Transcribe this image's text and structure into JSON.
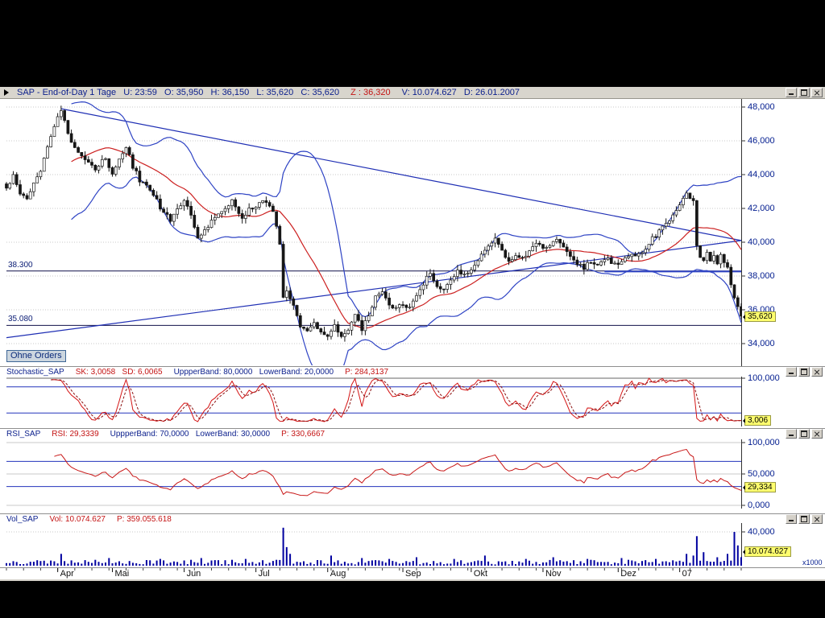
{
  "window": {
    "title_part1": "SAP - End-of-Day 1 Tage   U: 23:59   O: 35,950   H: 36,150   L: 35,620   C: 35,620",
    "title_part2": "Z : 36,320",
    "title_part3": "V: 10.074.627   D: 26.01.2007"
  },
  "main_chart": {
    "orders_label": "Ohne Orders",
    "support_upper_label": "38.300",
    "support_lower_label": "35.080",
    "last_price_label": "35,620"
  },
  "stochastic": {
    "name": "Stochastic_SAP",
    "params_red1": "SK: 3,0058   SD: 6,0065",
    "params_blue": "UppperBand: 80,0000   LowerBand: 20,0000",
    "params_red2": "P: 284,3137",
    "top_label": "100,000",
    "value_label": "3,006"
  },
  "rsi": {
    "name": "RSI_SAP",
    "params_red1": "RSI: 29,3339",
    "params_blue": "UppperBand: 70,0000   LowerBand: 30,0000",
    "params_red2": "P: 330,6667",
    "labels": {
      "top": "100,000",
      "mid": "50,000",
      "bottom": "0,000"
    },
    "value_label": "29,334"
  },
  "volume": {
    "name": "Vol_SAP",
    "params_red1": "Vol: 10.074.627",
    "params_red2": "P: 359.055.618",
    "top_label": "40,000",
    "value_label": "10.074.627",
    "multiplier_label": "x1000"
  },
  "chart_data": {
    "type": "candlestick",
    "title": "SAP End-of-Day 1 Tage",
    "days": 216,
    "y_ticks": [
      {
        "label": "48,000",
        "value": 48
      },
      {
        "label": "46,000",
        "value": 46
      },
      {
        "label": "44,000",
        "value": 44
      },
      {
        "label": "42,000",
        "value": 42
      },
      {
        "label": "40,000",
        "value": 40
      },
      {
        "label": "38,000",
        "value": 38
      },
      {
        "label": "36,000",
        "value": 36
      },
      {
        "label": "34,000",
        "value": 34
      }
    ],
    "y_range": [
      33.6,
      48.45
    ],
    "x_months": [
      {
        "label": "Apr",
        "day": 15
      },
      {
        "label": "Mai",
        "day": 31
      },
      {
        "label": "Jun",
        "day": 52
      },
      {
        "label": "Jul",
        "day": 73
      },
      {
        "label": "Aug",
        "day": 94
      },
      {
        "label": "Sep",
        "day": 116
      },
      {
        "label": "Okt",
        "day": 136
      },
      {
        "label": "Nov",
        "day": 157
      },
      {
        "label": "Dez",
        "day": 179
      },
      {
        "label": "07",
        "day": 197
      }
    ],
    "close_anchors": [
      [
        0,
        43.2
      ],
      [
        2,
        43.9
      ],
      [
        4,
        42.9
      ],
      [
        6,
        42.6
      ],
      [
        8,
        43.5
      ],
      [
        10,
        44.3
      ],
      [
        12,
        45.7
      ],
      [
        14,
        46.9
      ],
      [
        16,
        47.85
      ],
      [
        18,
        46.3
      ],
      [
        20,
        45.5
      ],
      [
        23,
        44.9
      ],
      [
        26,
        44.3
      ],
      [
        29,
        45.0
      ],
      [
        31,
        44.1
      ],
      [
        33,
        44.9
      ],
      [
        35,
        45.6
      ],
      [
        37,
        44.5
      ],
      [
        39,
        43.7
      ],
      [
        42,
        43.1
      ],
      [
        45,
        42.1
      ],
      [
        48,
        41.3
      ],
      [
        50,
        41.9
      ],
      [
        52,
        42.5
      ],
      [
        54,
        41.7
      ],
      [
        56,
        40.1
      ],
      [
        58,
        40.7
      ],
      [
        60,
        41.3
      ],
      [
        63,
        41.9
      ],
      [
        66,
        42.4
      ],
      [
        69,
        41.5
      ],
      [
        72,
        42.1
      ],
      [
        75,
        42.4
      ],
      [
        78,
        41.9
      ],
      [
        80,
        40.0
      ],
      [
        81,
        36.7
      ],
      [
        82,
        37.1
      ],
      [
        84,
        36.2
      ],
      [
        86,
        35.1
      ],
      [
        88,
        34.8
      ],
      [
        90,
        35.3
      ],
      [
        92,
        34.6
      ],
      [
        94,
        34.4
      ],
      [
        96,
        35.0
      ],
      [
        98,
        34.5
      ],
      [
        100,
        34.9
      ],
      [
        102,
        35.7
      ],
      [
        104,
        34.9
      ],
      [
        106,
        35.6
      ],
      [
        108,
        36.7
      ],
      [
        110,
        37.2
      ],
      [
        112,
        36.2
      ],
      [
        114,
        36.0
      ],
      [
        116,
        36.4
      ],
      [
        118,
        36.1
      ],
      [
        120,
        36.9
      ],
      [
        122,
        37.6
      ],
      [
        124,
        38.1
      ],
      [
        126,
        37.4
      ],
      [
        128,
        37.1
      ],
      [
        130,
        37.9
      ],
      [
        132,
        38.3
      ],
      [
        134,
        38.0
      ],
      [
        136,
        38.5
      ],
      [
        139,
        39.2
      ],
      [
        141,
        39.8
      ],
      [
        143,
        40.3
      ],
      [
        145,
        39.4
      ],
      [
        147,
        38.9
      ],
      [
        149,
        39.3
      ],
      [
        151,
        39.0
      ],
      [
        153,
        39.5
      ],
      [
        155,
        39.9
      ],
      [
        157,
        39.6
      ],
      [
        159,
        39.9
      ],
      [
        161,
        40.1
      ],
      [
        163,
        39.6
      ],
      [
        165,
        39.1
      ],
      [
        167,
        38.7
      ],
      [
        169,
        38.5
      ],
      [
        171,
        38.9
      ],
      [
        173,
        38.6
      ],
      [
        175,
        39.1
      ],
      [
        177,
        38.8
      ],
      [
        179,
        38.6
      ],
      [
        181,
        39.0
      ],
      [
        183,
        39.4
      ],
      [
        185,
        39.2
      ],
      [
        187,
        39.7
      ],
      [
        189,
        40.2
      ],
      [
        191,
        40.6
      ],
      [
        193,
        41.1
      ],
      [
        195,
        41.7
      ],
      [
        197,
        42.3
      ],
      [
        199,
        42.9
      ],
      [
        201,
        42.5
      ],
      [
        202,
        39.7
      ],
      [
        203,
        39.2
      ],
      [
        204,
        38.9
      ],
      [
        205,
        39.3
      ],
      [
        206,
        38.9
      ],
      [
        207,
        39.2
      ],
      [
        208,
        38.8
      ],
      [
        209,
        39.2
      ],
      [
        210,
        38.9
      ],
      [
        211,
        38.4
      ],
      [
        212,
        37.5
      ],
      [
        213,
        36.6
      ],
      [
        214,
        36.3
      ],
      [
        215,
        35.62
      ]
    ],
    "last_close": 35.62,
    "supports": [
      {
        "label": "38.300",
        "value": 38.3
      },
      {
        "label": "35.080",
        "value": 35.08
      }
    ],
    "trendlines": [
      {
        "from": [
          16,
          47.9
        ],
        "to": [
          215,
          40.1
        ]
      },
      {
        "from": [
          0,
          34.35
        ],
        "to": [
          215,
          40.1
        ]
      }
    ],
    "flat_segment": {
      "value": 38.27,
      "from": 175,
      "to": 215
    },
    "ma": {
      "period": 20
    },
    "bollinger": {
      "period": 20,
      "mult": 2
    },
    "stochastic": {
      "k": 14,
      "d": 3,
      "upper": 80,
      "lower": 20,
      "last": 3.0058
    },
    "rsi": {
      "period": 14,
      "upper": 70,
      "lower": 30,
      "last": 29.3339,
      "ticks": [
        100,
        50,
        0
      ]
    },
    "volume": {
      "unit": "x1000",
      "axis_tick": 40,
      "base_range": [
        1.5,
        7
      ],
      "last": 10.07,
      "spikes": [
        [
          16,
          14
        ],
        [
          30,
          9
        ],
        [
          45,
          8
        ],
        [
          57,
          9
        ],
        [
          70,
          8
        ],
        [
          81,
          45
        ],
        [
          82,
          22
        ],
        [
          83,
          14
        ],
        [
          95,
          12
        ],
        [
          104,
          9
        ],
        [
          112,
          8
        ],
        [
          120,
          10
        ],
        [
          131,
          8
        ],
        [
          140,
          12
        ],
        [
          152,
          8
        ],
        [
          160,
          10
        ],
        [
          170,
          8
        ],
        [
          180,
          9
        ],
        [
          190,
          8
        ],
        [
          199,
          14
        ],
        [
          201,
          12
        ],
        [
          202,
          35
        ],
        [
          204,
          16
        ],
        [
          208,
          10
        ],
        [
          211,
          14
        ],
        [
          213,
          40
        ],
        [
          214,
          24
        ],
        [
          215,
          10.07
        ]
      ]
    },
    "colors": {
      "up_candle": "#ffffff",
      "down_candle": "#161616",
      "wick": "#161616",
      "ma": "#cc2020",
      "band": "#2e43c4",
      "trend": "#1f2fb4",
      "support": "#10104a",
      "grid": "#c9c9c9",
      "band_line": "#2233bb",
      "stoch_k": "#d41414",
      "stoch_d": "#8b0e0e",
      "rsi_line": "#c81616",
      "volume_bar": "#0000a0",
      "badge_bg": "#ffff6e",
      "axis_text": "#001b8e"
    }
  }
}
